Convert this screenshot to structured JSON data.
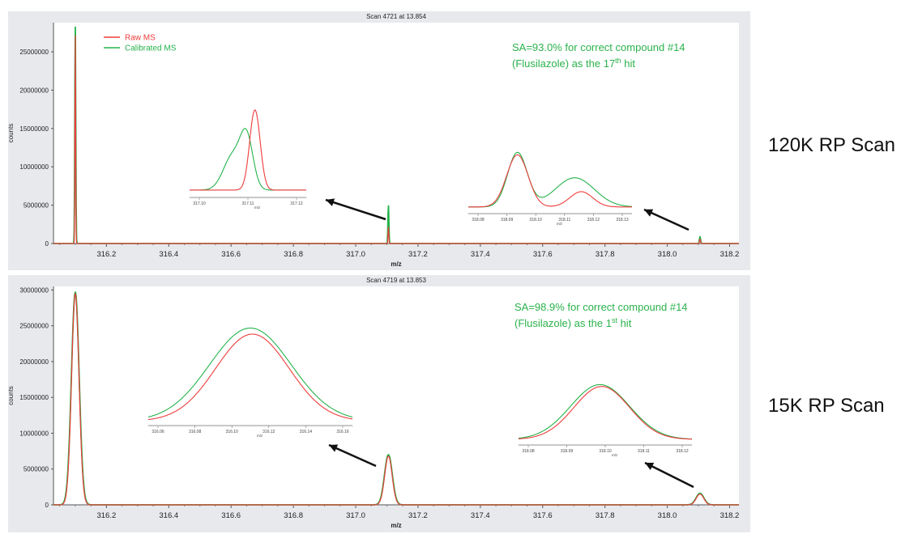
{
  "labels": {
    "top": "120K RP Scan",
    "bottom": "15K RP Scan"
  },
  "colors": {
    "raw": "#ee3b3b",
    "calibrated": "#24b34b",
    "annotation": "#2bb24c"
  },
  "chart_data": [
    {
      "type": "line",
      "title": "Scan 4721 at 13.854",
      "xlabel": "m/z",
      "ylabel": "counts",
      "xlim": [
        316.03,
        318.23
      ],
      "ylim": [
        0,
        28800000
      ],
      "xticks": [
        "316.2",
        "316.4",
        "316.6",
        "316.8",
        "317.0",
        "317.2",
        "317.4",
        "317.6",
        "317.8",
        "318.0",
        "318.2"
      ],
      "yticks": [
        "0",
        "5000000",
        "10000000",
        "15000000",
        "20000000",
        "25000000"
      ],
      "legend": {
        "position": "top-left",
        "entries": [
          "Raw MS",
          "Calibrated MS"
        ]
      },
      "annotation": [
        "SA=93.0% for correct compound #14",
        "(Flusilazole) as the 17",
        "th",
        " hit"
      ],
      "series": [
        {
          "name": "Raw MS",
          "peaks": [
            [
              316.1,
              27500000,
              0.0012
            ],
            [
              317.105,
              2200000,
              0.0012
            ],
            [
              318.105,
              600000,
              0.0015
            ]
          ]
        },
        {
          "name": "Calibrated MS",
          "peaks": [
            [
              316.1,
              28500000,
              0.0015
            ],
            [
              317.105,
              5000000,
              0.0015
            ],
            [
              318.105,
              900000,
              0.0018
            ]
          ]
        }
      ],
      "insets": [
        {
          "xticks": [
            "317.10",
            "317.11",
            "317.12"
          ],
          "xlabel": "m/z"
        },
        {
          "xticks": [
            "318.08",
            "318.09",
            "318.10",
            "318.11",
            "318.12",
            "318.13"
          ],
          "xlabel": "m/z"
        }
      ]
    },
    {
      "type": "line",
      "title": "Scan 4719 at 13.853",
      "xlabel": "m/z",
      "ylabel": "counts",
      "xlim": [
        316.03,
        318.23
      ],
      "ylim": [
        0,
        30500000
      ],
      "xticks": [
        "316.2",
        "316.4",
        "316.6",
        "316.8",
        "317.0",
        "317.2",
        "317.4",
        "317.6",
        "317.8",
        "318.0",
        "318.2"
      ],
      "yticks": [
        "0",
        "5000000",
        "10000000",
        "15000000",
        "20000000",
        "25000000",
        "30000000"
      ],
      "legend": null,
      "annotation": [
        "SA=98.9% for correct compound #14",
        "(Flusilazole) as the 1",
        "st",
        " hit"
      ],
      "series": [
        {
          "name": "Raw MS",
          "peaks": [
            [
              316.1,
              29500000,
              0.012
            ],
            [
              317.105,
              6800000,
              0.012
            ],
            [
              318.105,
              1500000,
              0.012
            ]
          ]
        },
        {
          "name": "Calibrated MS",
          "peaks": [
            [
              316.1,
              29700000,
              0.0125
            ],
            [
              317.105,
              7000000,
              0.0125
            ],
            [
              318.105,
              1600000,
              0.0125
            ]
          ]
        }
      ],
      "insets": [
        {
          "xticks": [
            "316.06",
            "316.08",
            "316.10",
            "316.12",
            "316.14",
            "316.16"
          ],
          "xlabel": "m/z"
        },
        {
          "xticks": [
            "318.08",
            "318.09",
            "318.10",
            "318.11",
            "318.12"
          ],
          "xlabel": "m/z"
        }
      ]
    }
  ]
}
